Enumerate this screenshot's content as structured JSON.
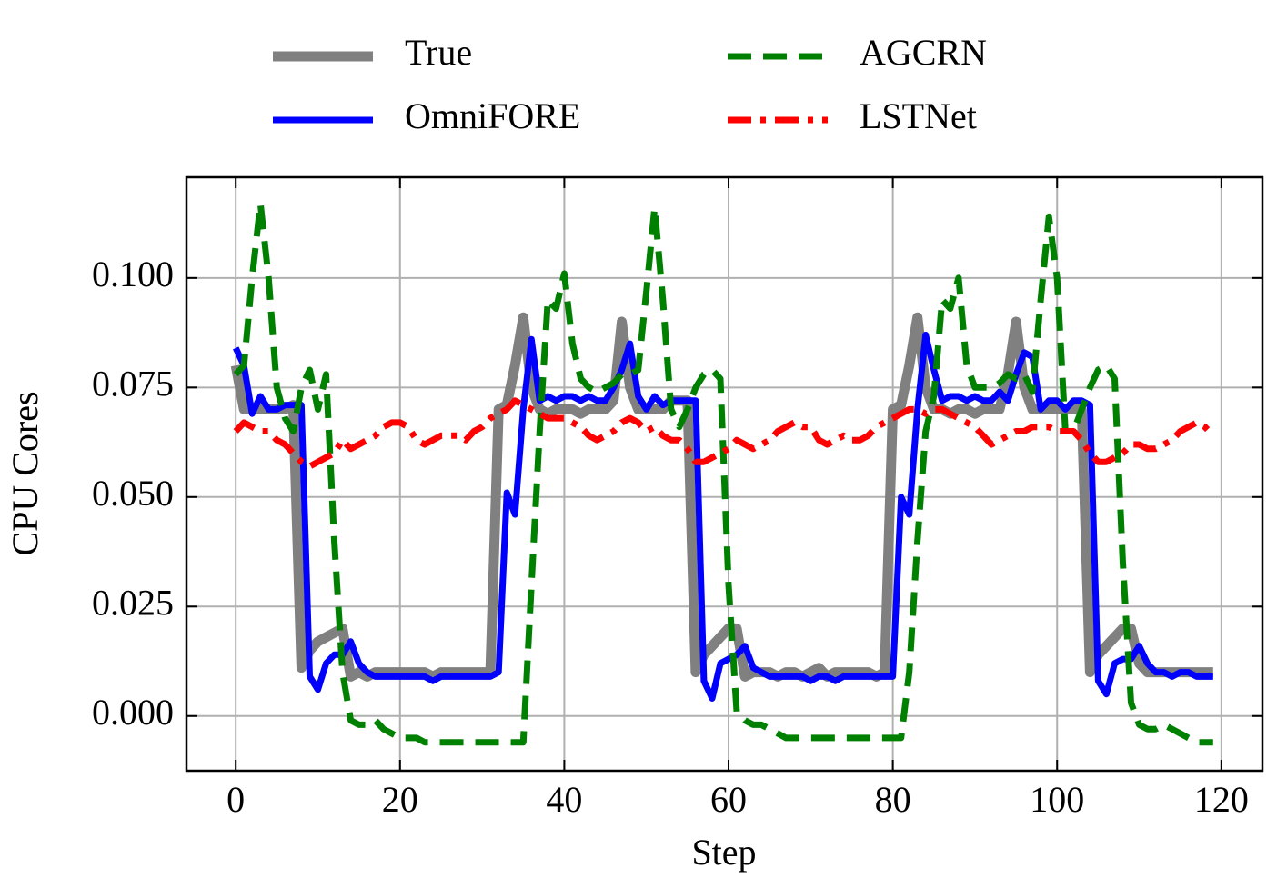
{
  "chart_data": {
    "type": "line",
    "x_label": "Step",
    "y_label": "CPU Cores",
    "x": [
      0,
      1,
      2,
      3,
      4,
      5,
      6,
      7,
      8,
      9,
      10,
      11,
      12,
      13,
      14,
      15,
      16,
      17,
      18,
      19,
      20,
      21,
      22,
      23,
      24,
      25,
      26,
      27,
      28,
      29,
      30,
      31,
      32,
      33,
      34,
      35,
      36,
      37,
      38,
      39,
      40,
      41,
      42,
      43,
      44,
      45,
      46,
      47,
      48,
      49,
      50,
      51,
      52,
      53,
      54,
      55,
      56,
      57,
      58,
      59,
      60,
      61,
      62,
      63,
      64,
      65,
      66,
      67,
      68,
      69,
      70,
      71,
      72,
      73,
      74,
      75,
      76,
      77,
      78,
      79,
      80,
      81,
      82,
      83,
      84,
      85,
      86,
      87,
      88,
      89,
      90,
      91,
      92,
      93,
      94,
      95,
      96,
      97,
      98,
      99,
      100,
      101,
      102,
      103,
      104,
      105,
      106,
      107,
      108,
      109,
      110,
      111,
      112,
      113,
      114,
      115,
      116,
      117,
      118,
      119
    ],
    "series": [
      {
        "name": "True",
        "color": "#808080",
        "linestyle": "solid",
        "values": [
          0.08,
          0.07,
          0.07,
          0.07,
          0.07,
          0.07,
          0.07,
          0.071,
          0.011,
          0.015,
          0.017,
          0.018,
          0.019,
          0.02,
          0.009,
          0.01,
          0.009,
          0.01,
          0.01,
          0.01,
          0.01,
          0.01,
          0.01,
          0.01,
          0.009,
          0.01,
          0.01,
          0.01,
          0.01,
          0.01,
          0.01,
          0.01,
          0.07,
          0.071,
          0.08,
          0.091,
          0.075,
          0.07,
          0.069,
          0.07,
          0.07,
          0.07,
          0.069,
          0.07,
          0.07,
          0.07,
          0.072,
          0.09,
          0.075,
          0.07,
          0.07,
          0.07,
          0.07,
          0.072,
          0.072,
          0.072,
          0.01,
          0.014,
          0.016,
          0.018,
          0.02,
          0.02,
          0.009,
          0.01,
          0.01,
          0.01,
          0.009,
          0.01,
          0.01,
          0.009,
          0.01,
          0.011,
          0.009,
          0.01,
          0.01,
          0.01,
          0.01,
          0.01,
          0.009,
          0.01,
          0.07,
          0.071,
          0.08,
          0.091,
          0.075,
          0.07,
          0.07,
          0.069,
          0.07,
          0.07,
          0.069,
          0.07,
          0.07,
          0.07,
          0.078,
          0.09,
          0.075,
          0.07,
          0.07,
          0.07,
          0.07,
          0.07,
          0.07,
          0.07,
          0.01,
          0.014,
          0.016,
          0.018,
          0.02,
          0.02,
          0.012,
          0.01,
          0.01,
          0.01,
          0.01,
          0.01,
          0.01,
          0.01,
          0.01,
          0.01
        ]
      },
      {
        "name": "OmniFORE",
        "color": "#0000ff",
        "linestyle": "solid",
        "values": [
          0.084,
          0.08,
          0.069,
          0.073,
          0.07,
          0.07,
          0.071,
          0.071,
          0.071,
          0.009,
          0.006,
          0.012,
          0.014,
          0.014,
          0.017,
          0.012,
          0.01,
          0.009,
          0.009,
          0.009,
          0.009,
          0.009,
          0.009,
          0.009,
          0.008,
          0.009,
          0.009,
          0.009,
          0.009,
          0.009,
          0.009,
          0.009,
          0.01,
          0.051,
          0.046,
          0.07,
          0.086,
          0.072,
          0.073,
          0.072,
          0.073,
          0.073,
          0.072,
          0.073,
          0.072,
          0.072,
          0.075,
          0.079,
          0.085,
          0.073,
          0.07,
          0.073,
          0.071,
          0.072,
          0.072,
          0.072,
          0.072,
          0.008,
          0.004,
          0.012,
          0.013,
          0.014,
          0.016,
          0.011,
          0.01,
          0.009,
          0.009,
          0.009,
          0.009,
          0.009,
          0.008,
          0.009,
          0.009,
          0.008,
          0.009,
          0.009,
          0.009,
          0.009,
          0.009,
          0.009,
          0.009,
          0.05,
          0.046,
          0.07,
          0.087,
          0.079,
          0.072,
          0.073,
          0.073,
          0.072,
          0.073,
          0.072,
          0.072,
          0.074,
          0.072,
          0.078,
          0.083,
          0.082,
          0.07,
          0.072,
          0.072,
          0.07,
          0.072,
          0.072,
          0.071,
          0.008,
          0.005,
          0.012,
          0.013,
          0.013,
          0.016,
          0.012,
          0.01,
          0.01,
          0.009,
          0.01,
          0.01,
          0.009,
          0.009,
          0.009
        ]
      },
      {
        "name": "AGCRN",
        "color": "#008000",
        "linestyle": "dashed",
        "values": [
          0.078,
          0.08,
          0.1,
          0.117,
          0.1,
          0.075,
          0.068,
          0.065,
          0.075,
          0.079,
          0.07,
          0.078,
          0.04,
          0.01,
          -0.001,
          -0.002,
          -0.002,
          -0.001,
          -0.003,
          -0.004,
          -0.005,
          -0.005,
          -0.005,
          -0.006,
          -0.006,
          -0.006,
          -0.006,
          -0.006,
          -0.006,
          -0.006,
          -0.006,
          -0.006,
          -0.006,
          -0.006,
          -0.006,
          -0.006,
          0.03,
          0.065,
          0.095,
          0.093,
          0.101,
          0.085,
          0.077,
          0.075,
          0.074,
          0.075,
          0.076,
          0.078,
          0.078,
          0.079,
          0.097,
          0.116,
          0.095,
          0.07,
          0.066,
          0.07,
          0.075,
          0.078,
          0.079,
          0.077,
          0.03,
          0.001,
          -0.001,
          -0.002,
          -0.002,
          -0.003,
          -0.004,
          -0.005,
          -0.005,
          -0.005,
          -0.005,
          -0.005,
          -0.005,
          -0.005,
          -0.005,
          -0.005,
          -0.005,
          -0.005,
          -0.005,
          -0.005,
          -0.005,
          -0.005,
          0.01,
          0.04,
          0.065,
          0.073,
          0.095,
          0.093,
          0.1,
          0.08,
          0.075,
          0.075,
          0.075,
          0.076,
          0.078,
          0.077,
          0.078,
          0.074,
          0.095,
          0.114,
          0.1,
          0.065,
          0.065,
          0.07,
          0.075,
          0.079,
          0.08,
          0.077,
          0.035,
          0.003,
          -0.002,
          -0.003,
          -0.003,
          -0.002,
          -0.003,
          -0.004,
          -0.005,
          -0.006,
          -0.006,
          -0.006
        ]
      },
      {
        "name": "LSTNet",
        "color": "#ff0000",
        "linestyle": "dashdot",
        "values": [
          0.065,
          0.067,
          0.066,
          0.065,
          0.065,
          0.063,
          0.062,
          0.06,
          0.058,
          0.057,
          0.058,
          0.059,
          0.06,
          0.063,
          0.061,
          0.062,
          0.063,
          0.064,
          0.066,
          0.067,
          0.067,
          0.066,
          0.063,
          0.062,
          0.063,
          0.064,
          0.064,
          0.064,
          0.063,
          0.065,
          0.066,
          0.068,
          0.069,
          0.07,
          0.072,
          0.071,
          0.07,
          0.069,
          0.068,
          0.068,
          0.068,
          0.067,
          0.066,
          0.064,
          0.063,
          0.064,
          0.065,
          0.067,
          0.068,
          0.067,
          0.065,
          0.066,
          0.064,
          0.063,
          0.063,
          0.061,
          0.058,
          0.058,
          0.059,
          0.06,
          0.061,
          0.063,
          0.062,
          0.061,
          0.062,
          0.063,
          0.065,
          0.066,
          0.067,
          0.066,
          0.066,
          0.063,
          0.062,
          0.063,
          0.064,
          0.063,
          0.063,
          0.064,
          0.066,
          0.067,
          0.068,
          0.069,
          0.07,
          0.07,
          0.069,
          0.07,
          0.07,
          0.069,
          0.068,
          0.067,
          0.066,
          0.064,
          0.062,
          0.063,
          0.064,
          0.065,
          0.065,
          0.066,
          0.066,
          0.066,
          0.065,
          0.065,
          0.065,
          0.063,
          0.06,
          0.058,
          0.058,
          0.059,
          0.06,
          0.062,
          0.062,
          0.061,
          0.061,
          0.062,
          0.063,
          0.065,
          0.066,
          0.067,
          0.066,
          0.064
        ]
      }
    ],
    "xlim": [
      -6,
      125
    ],
    "ylim": [
      -0.0125,
      0.123
    ],
    "xticks": [
      0,
      20,
      40,
      60,
      80,
      100,
      120
    ],
    "yticks": [
      {
        "value": 0,
        "label": "0.000"
      },
      {
        "value": 0.025,
        "label": "0.025"
      },
      {
        "value": 0.05,
        "label": "0.050"
      },
      {
        "value": 0.075,
        "label": "0.075"
      },
      {
        "value": 0.1,
        "label": "0.100"
      }
    ],
    "grid": true,
    "legend": "top"
  }
}
